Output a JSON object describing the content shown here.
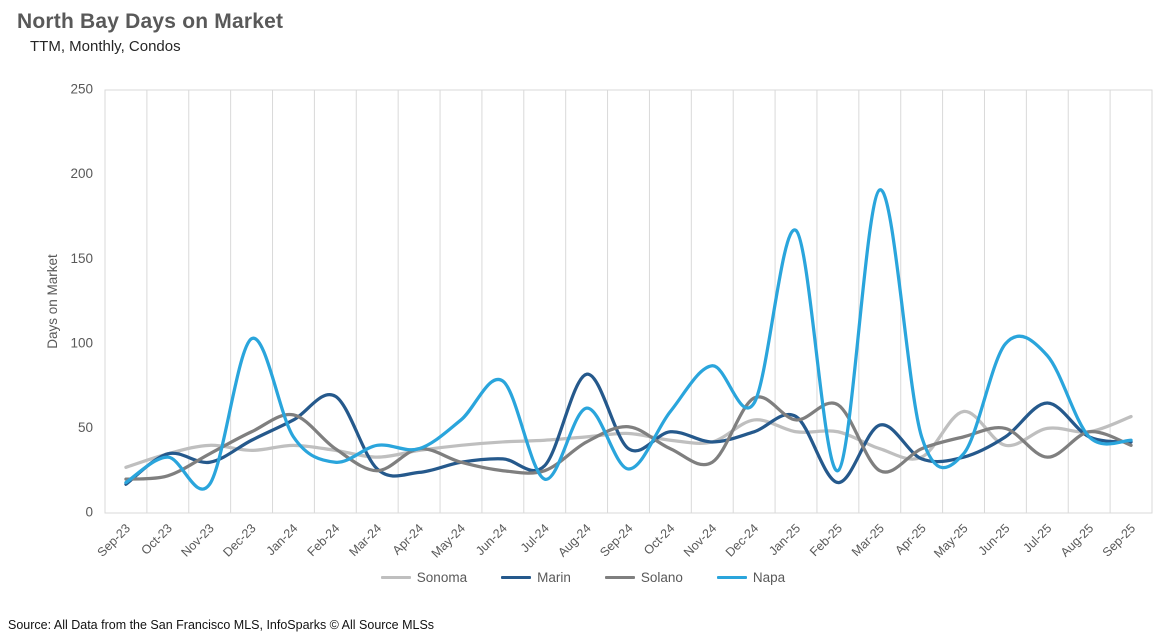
{
  "header": {
    "title": "North Bay Days on Market",
    "subtitle": "TTM, Monthly, Condos"
  },
  "footer": {
    "source": "Source: All Data from the San Francisco MLS, InfoSparks © All Source MLSs"
  },
  "chart_data": {
    "type": "line",
    "title": "North Bay Days on Market",
    "subtitle": "TTM, Monthly, Condos",
    "xlabel": "",
    "ylabel": "Days on Market",
    "ylim": [
      0,
      250
    ],
    "ytick_step": 50,
    "grid": "vertical-only",
    "smooth": true,
    "legend_position": "bottom",
    "frame_color": "#d9d9d9",
    "axis_text_color": "#595959",
    "categories": [
      "Sep-23",
      "Oct-23",
      "Nov-23",
      "Dec-23",
      "Jan-24",
      "Feb-24",
      "Mar-24",
      "Apr-24",
      "May-24",
      "Jun-24",
      "Jul-24",
      "Aug-24",
      "Sep-24",
      "Oct-24",
      "Nov-24",
      "Dec-24",
      "Jan-25",
      "Feb-25",
      "Mar-25",
      "Apr-25",
      "May-25",
      "Jun-25",
      "Jul-25",
      "Aug-25",
      "Sep-25"
    ],
    "series": [
      {
        "name": "Sonoma",
        "color": "#bfbfbf",
        "values": [
          27,
          35,
          40,
          37,
          40,
          37,
          33,
          37,
          40,
          42,
          43,
          45,
          47,
          43,
          42,
          55,
          48,
          48,
          38,
          33,
          60,
          40,
          50,
          48,
          57
        ]
      },
      {
        "name": "Marin",
        "color": "#25598c",
        "values": [
          17,
          35,
          30,
          43,
          55,
          69,
          26,
          24,
          30,
          32,
          28,
          82,
          38,
          48,
          42,
          48,
          57,
          18,
          52,
          32,
          33,
          45,
          65,
          45,
          42
        ]
      },
      {
        "name": "Solano",
        "color": "#7f7f7f",
        "values": [
          20,
          22,
          35,
          48,
          58,
          38,
          25,
          38,
          30,
          25,
          25,
          42,
          51,
          38,
          30,
          68,
          55,
          64,
          25,
          38,
          45,
          50,
          33,
          48,
          40
        ]
      },
      {
        "name": "Napa",
        "color": "#2aa5dc",
        "values": [
          18,
          33,
          17,
          103,
          45,
          30,
          40,
          38,
          55,
          78,
          20,
          62,
          26,
          60,
          87,
          65,
          167,
          25,
          191,
          45,
          35,
          100,
          93,
          45,
          43
        ]
      }
    ]
  }
}
